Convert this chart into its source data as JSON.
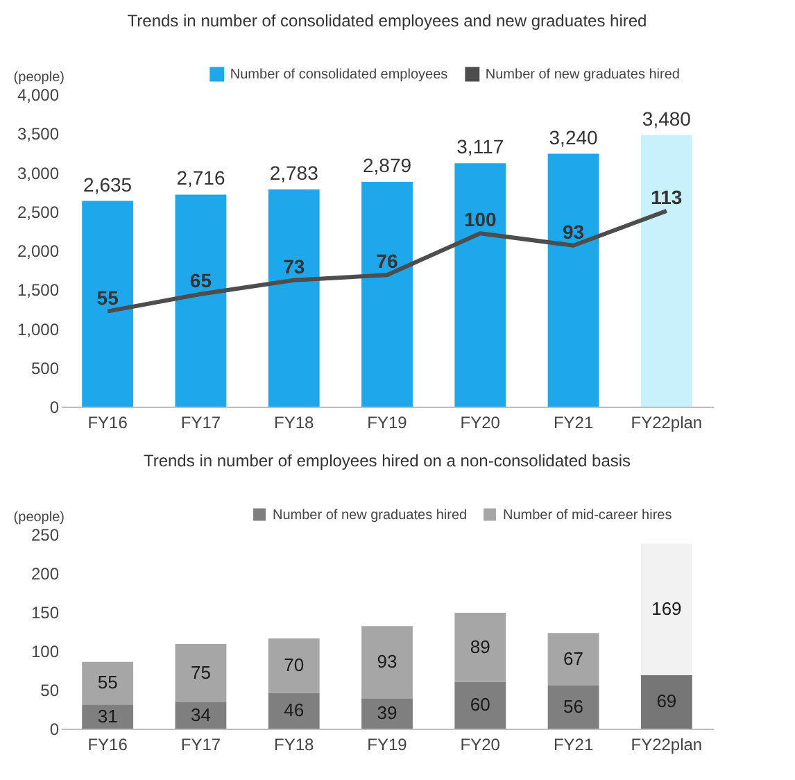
{
  "chart_data": [
    {
      "type": "bar",
      "title": "Trends in number of consolidated employees and new graduates hired",
      "ylabel": "(people)",
      "categories": [
        "FY16",
        "FY17",
        "FY18",
        "FY19",
        "FY20",
        "FY21",
        "FY22plan"
      ],
      "series": [
        {
          "name": "Number of consolidated employees",
          "type": "bar",
          "color": "#1ea7ea",
          "colors": [
            "#1ea7ea",
            "#1ea7ea",
            "#1ea7ea",
            "#1ea7ea",
            "#1ea7ea",
            "#1ea7ea",
            "#c9f1fb"
          ],
          "values": [
            2635,
            2716,
            2783,
            2879,
            3117,
            3240,
            3480
          ],
          "value_labels": [
            "2,635",
            "2,716",
            "2,783",
            "2,879",
            "3,117",
            "3,240",
            "3,480"
          ]
        },
        {
          "name": "Number of new graduates hired",
          "type": "line",
          "axis": "y2",
          "color": "#4d4d4d",
          "values": [
            55,
            65,
            73,
            76,
            100,
            93,
            113
          ]
        }
      ],
      "ylim": [
        0,
        4000
      ],
      "yticks": [
        0,
        500,
        {
          "value": 1000,
          "label": "1,000"
        },
        {
          "value": 1500,
          "label": "1,500"
        },
        {
          "value": 2000,
          "label": "2,000"
        },
        {
          "value": 2500,
          "label": "2,500"
        },
        {
          "value": 3000,
          "label": "3,000"
        },
        {
          "value": 3500,
          "label": "3,500"
        },
        {
          "value": 4000,
          "label": "4,000"
        }
      ],
      "data_labels": true,
      "legend": "top right"
    },
    {
      "type": "bar",
      "stacked": true,
      "title": "Trends in number of employees hired on a non-consolidated basis",
      "ylabel": "(people)",
      "categories": [
        "FY16",
        "FY17",
        "FY18",
        "FY19",
        "FY20",
        "FY21",
        "FY22plan"
      ],
      "series": [
        {
          "name": "Number of new graduates hired",
          "color": "#7f7f7f",
          "colors": [
            "#7f7f7f",
            "#7f7f7f",
            "#7f7f7f",
            "#7f7f7f",
            "#7f7f7f",
            "#7f7f7f",
            "#767676"
          ],
          "values": [
            31,
            34,
            46,
            39,
            60,
            56,
            69
          ]
        },
        {
          "name": "Number of mid-career hires",
          "color": "#a6a6a6",
          "colors": [
            "#a6a6a6",
            "#a6a6a6",
            "#a6a6a6",
            "#a6a6a6",
            "#a6a6a6",
            "#a6a6a6",
            "#f2f2f2"
          ],
          "values": [
            55,
            75,
            70,
            93,
            89,
            67,
            169
          ]
        }
      ],
      "ylim": [
        0,
        250
      ],
      "yticks": [
        0,
        50,
        100,
        150,
        200,
        250
      ],
      "data_labels": true,
      "legend": "top right"
    }
  ]
}
